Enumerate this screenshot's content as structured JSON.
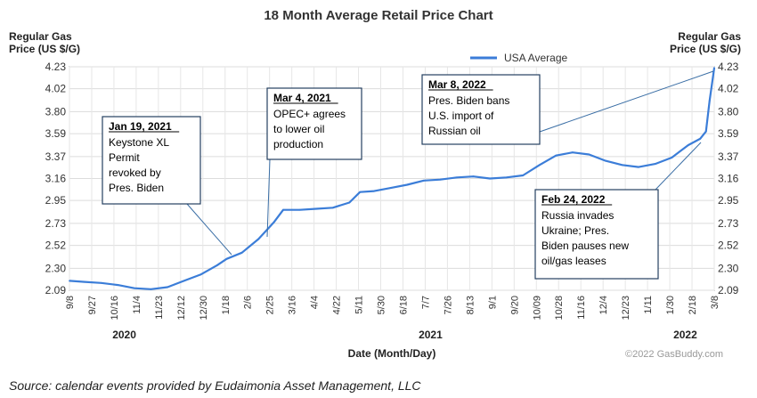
{
  "chart_data": {
    "type": "line",
    "title": "18 Month Average Retail Price Chart",
    "ylabel": "Regular Gas Price (US $/G)",
    "xlabel": "Date (Month/Day)",
    "ylim": [
      2.09,
      4.23
    ],
    "yticks": [
      "4.23",
      "4.02",
      "3.80",
      "3.59",
      "3.37",
      "3.16",
      "2.95",
      "2.73",
      "2.52",
      "2.30",
      "2.09"
    ],
    "xticks": [
      "9/8",
      "9/27",
      "10/16",
      "11/4",
      "11/23",
      "12/12",
      "12/30",
      "1/18",
      "2/6",
      "2/25",
      "3/16",
      "4/4",
      "4/22",
      "5/11",
      "5/30",
      "6/18",
      "7/7",
      "7/26",
      "8/13",
      "9/1",
      "9/20",
      "10/09",
      "10/28",
      "11/16",
      "12/4",
      "12/23",
      "1/11",
      "1/30",
      "2/18",
      "3/8"
    ],
    "years": [
      "2020",
      "2021",
      "2022"
    ],
    "legend": "top-center",
    "grid": true,
    "series": [
      {
        "name": "USA Average",
        "color": "#3b7dd8",
        "x": [
          "2020-09-08",
          "2020-09-21",
          "2020-10-05",
          "2020-10-19",
          "2020-11-02",
          "2020-11-16",
          "2020-11-30",
          "2020-12-14",
          "2020-12-28",
          "2021-01-11",
          "2021-01-19",
          "2021-02-01",
          "2021-02-15",
          "2021-02-28",
          "2021-03-08",
          "2021-03-22",
          "2021-04-05",
          "2021-04-19",
          "2021-05-03",
          "2021-05-12",
          "2021-05-24",
          "2021-06-07",
          "2021-06-21",
          "2021-07-05",
          "2021-07-19",
          "2021-08-02",
          "2021-08-16",
          "2021-08-30",
          "2021-09-13",
          "2021-09-27",
          "2021-10-11",
          "2021-10-25",
          "2021-11-08",
          "2021-11-22",
          "2021-12-06",
          "2021-12-20",
          "2022-01-03",
          "2022-01-17",
          "2022-01-31",
          "2022-02-14",
          "2022-02-24",
          "2022-03-01",
          "2022-03-04",
          "2022-03-08"
        ],
        "y": [
          2.18,
          2.17,
          2.16,
          2.14,
          2.11,
          2.1,
          2.12,
          2.18,
          2.24,
          2.33,
          2.39,
          2.45,
          2.58,
          2.74,
          2.86,
          2.86,
          2.87,
          2.88,
          2.93,
          3.03,
          3.04,
          3.07,
          3.1,
          3.14,
          3.15,
          3.17,
          3.18,
          3.16,
          3.17,
          3.19,
          3.29,
          3.38,
          3.41,
          3.39,
          3.33,
          3.29,
          3.27,
          3.3,
          3.36,
          3.48,
          3.54,
          3.61,
          3.9,
          4.22
        ]
      }
    ],
    "annotations": [
      {
        "date": "Jan 19, 2021",
        "lines": [
          "Keystone XL",
          "Permit",
          "revoked by",
          "Pres. Biden"
        ]
      },
      {
        "date": "Mar 4, 2021",
        "lines": [
          "OPEC+ agrees",
          "to lower oil",
          "production"
        ]
      },
      {
        "date": "Mar 8, 2022",
        "lines": [
          "Pres. Biden bans",
          "U.S. import of",
          "Russian oil"
        ]
      },
      {
        "date": "Feb 24, 2022",
        "lines": [
          "Russia invades",
          "Ukraine; Pres.",
          "Biden pauses new",
          "oil/gas leases"
        ]
      }
    ],
    "credit": "©2022 GasBuddy.com"
  },
  "header": {
    "ylabel_left_1": "Regular Gas",
    "ylabel_left_2": "Price (US $/G)",
    "ylabel_right_1": "Regular Gas",
    "ylabel_right_2": "Price (US $/G)"
  },
  "footer": {
    "source": "Source:  calendar events provided by Eudaimonia Asset Management, LLC"
  }
}
